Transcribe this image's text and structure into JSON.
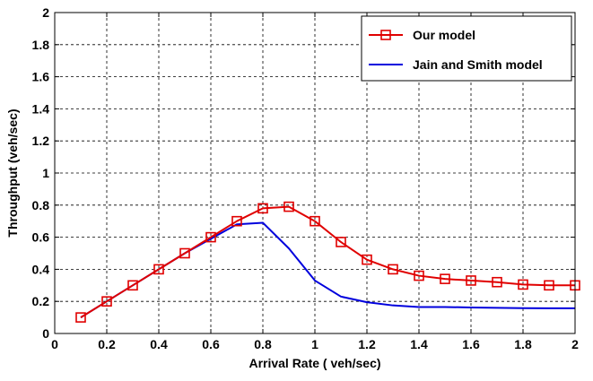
{
  "chart_data": {
    "type": "line",
    "title": "",
    "xlabel": "Arrival Rate ( veh/sec)",
    "ylabel": "Throughput (veh/sec)",
    "xlim": [
      0,
      2
    ],
    "ylim": [
      0,
      2
    ],
    "xticks": [
      "0",
      "0.2",
      "0.4",
      "0.6",
      "0.8",
      "1",
      "1.2",
      "1.4",
      "1.6",
      "1.8",
      "2"
    ],
    "yticks": [
      "0",
      "0.2",
      "0.4",
      "0.6",
      "0.8",
      "1",
      "1.2",
      "1.4",
      "1.6",
      "1.8",
      "2"
    ],
    "grid": true,
    "grid_style": "dashed",
    "legend_position": "top-right",
    "series": [
      {
        "name": "Our model",
        "color": "#e00000",
        "marker": "square",
        "x": [
          0.1,
          0.2,
          0.3,
          0.4,
          0.5,
          0.6,
          0.7,
          0.8,
          0.9,
          1.0,
          1.1,
          1.2,
          1.3,
          1.4,
          1.5,
          1.6,
          1.7,
          1.8,
          1.9,
          2.0
        ],
        "y": [
          0.1,
          0.2,
          0.3,
          0.4,
          0.5,
          0.6,
          0.7,
          0.78,
          0.79,
          0.7,
          0.57,
          0.46,
          0.4,
          0.36,
          0.34,
          0.33,
          0.32,
          0.305,
          0.3,
          0.3
        ]
      },
      {
        "name": "Jain and Smith model",
        "color": "#0000dd",
        "marker": "none",
        "x": [
          0.1,
          0.2,
          0.3,
          0.4,
          0.5,
          0.6,
          0.7,
          0.8,
          0.9,
          1.0,
          1.1,
          1.2,
          1.3,
          1.4,
          1.5,
          1.6,
          1.7,
          1.8,
          1.9,
          2.0
        ],
        "y": [
          0.1,
          0.2,
          0.3,
          0.4,
          0.5,
          0.59,
          0.68,
          0.69,
          0.53,
          0.33,
          0.23,
          0.195,
          0.175,
          0.165,
          0.165,
          0.162,
          0.16,
          0.158,
          0.157,
          0.157
        ]
      }
    ]
  }
}
